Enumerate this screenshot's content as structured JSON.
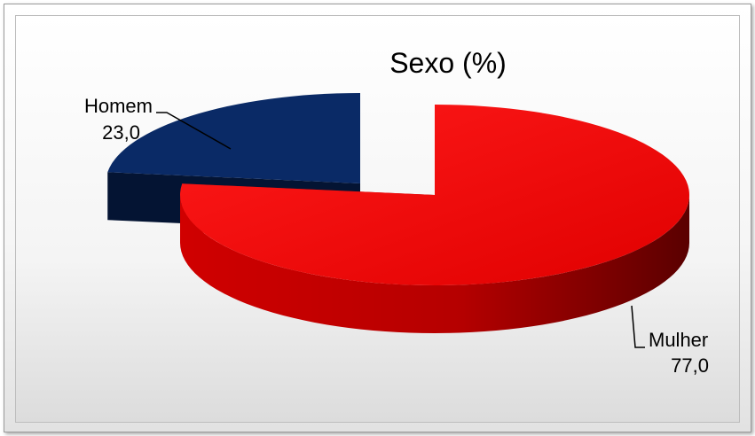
{
  "chart_data": {
    "type": "pie",
    "title": "Sexo (%)",
    "categories": [
      "Homem",
      "Mulher"
    ],
    "values": [
      23.0,
      77.0
    ],
    "value_labels": [
      "23,0",
      "77,0"
    ],
    "colors": [
      "#0a2a66",
      "#e60000"
    ],
    "style": "3d-exploded",
    "legend": "none"
  }
}
